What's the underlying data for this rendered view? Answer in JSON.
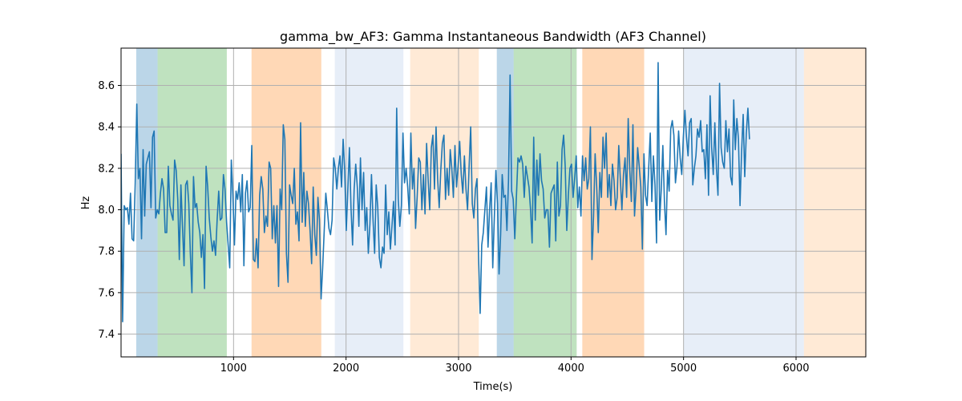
{
  "chart_data": {
    "type": "line",
    "title": "gamma_bw_AF3: Gamma Instantaneous Bandwidth (AF3 Channel)",
    "xlabel": "Time(s)",
    "ylabel": "Hz",
    "xlim": [
      0,
      6620
    ],
    "ylim": [
      7.29,
      8.78
    ],
    "xticks": [
      1000,
      2000,
      3000,
      4000,
      5000,
      6000
    ],
    "yticks": [
      7.4,
      7.6,
      7.8,
      8.0,
      8.2,
      8.4,
      8.6
    ],
    "grid": true,
    "line_color": "#1f77b4",
    "bands": [
      {
        "x0": 135,
        "x1": 325,
        "color": "#1f77b4",
        "opacity": 0.3
      },
      {
        "x0": 325,
        "x1": 940,
        "color": "#2ca02c",
        "opacity": 0.3
      },
      {
        "x0": 1160,
        "x1": 1780,
        "color": "#ff7f0e",
        "opacity": 0.3
      },
      {
        "x0": 1900,
        "x1": 2510,
        "color": "#aec7e8",
        "opacity": 0.3
      },
      {
        "x0": 2570,
        "x1": 3180,
        "color": "#ffbb78",
        "opacity": 0.3
      },
      {
        "x0": 3340,
        "x1": 3490,
        "color": "#1f77b4",
        "opacity": 0.3
      },
      {
        "x0": 3490,
        "x1": 4050,
        "color": "#2ca02c",
        "opacity": 0.3
      },
      {
        "x0": 4100,
        "x1": 4650,
        "color": "#ff7f0e",
        "opacity": 0.3
      },
      {
        "x0": 5000,
        "x1": 6070,
        "color": "#aec7e8",
        "opacity": 0.3
      },
      {
        "x0": 6070,
        "x1": 6620,
        "color": "#ffbb78",
        "opacity": 0.3
      }
    ],
    "series": [
      {
        "x_start": 0,
        "x_step": 14,
        "values": [
          8.27,
          7.46,
          8.02,
          8.0,
          8.01,
          7.93,
          8.08,
          7.86,
          7.85,
          8.13,
          8.51,
          8.15,
          8.2,
          7.86,
          8.29,
          7.97,
          8.22,
          8.25,
          8.28,
          8.01,
          8.35,
          8.38,
          7.96,
          8.0,
          7.98,
          8.08,
          8.15,
          8.1,
          7.89,
          7.89,
          8.21,
          8.02,
          7.98,
          7.95,
          8.24,
          8.19,
          8.05,
          7.76,
          8.12,
          7.92,
          7.73,
          8.12,
          8.14,
          8.03,
          7.79,
          7.6,
          8.16,
          8.01,
          8.03,
          7.94,
          7.89,
          7.77,
          7.88,
          7.62,
          8.21,
          8.11,
          7.96,
          7.87,
          7.8,
          7.85,
          7.78,
          7.95,
          8.09,
          7.95,
          7.96,
          8.17,
          8.1,
          7.94,
          7.83,
          7.72,
          8.24,
          8.07,
          7.83,
          8.09,
          8.05,
          8.13,
          7.99,
          8.17,
          7.73,
          8.08,
          8.14,
          7.99,
          8.01,
          8.31,
          7.76,
          7.75,
          7.86,
          7.72,
          8.07,
          8.16,
          8.1,
          7.89,
          7.97,
          7.92,
          8.23,
          8.2,
          7.86,
          8.02,
          7.84,
          8.02,
          7.63,
          8.1,
          8.0,
          8.41,
          8.34,
          7.79,
          7.65,
          8.12,
          8.07,
          8.03,
          8.2,
          7.93,
          7.99,
          7.85,
          8.42,
          7.94,
          8.18,
          7.92,
          8.09,
          8.03,
          7.9,
          7.74,
          8.11,
          7.88,
          7.78,
          8.06,
          7.95,
          7.57,
          7.72,
          7.9,
          8.08,
          8.0,
          7.91,
          7.88,
          7.95,
          8.25,
          8.2,
          8.1,
          8.2,
          8.26,
          8.11,
          8.34,
          8.19,
          7.9,
          8.1,
          8.3,
          8.01,
          7.83,
          8.1,
          8.22,
          8.11,
          7.92,
          8.25,
          8.0,
          8.18,
          7.9,
          8.01,
          7.79,
          7.93,
          8.17,
          7.95,
          7.79,
          8.12,
          8.01,
          7.77,
          7.72,
          7.82,
          7.79,
          8.12,
          7.88,
          7.99,
          7.81,
          7.92,
          8.04,
          7.83,
          8.49,
          8.05,
          7.92,
          8.02,
          8.37,
          8.13,
          8.2,
          8.11,
          7.98,
          8.37,
          8.1,
          8.2,
          7.91,
          8.06,
          8.25,
          8.23,
          8.0,
          8.17,
          7.98,
          8.32,
          8.14,
          8.0,
          8.3,
          8.36,
          8.1,
          8.4,
          8.15,
          8.01,
          8.19,
          8.32,
          8.36,
          8.05,
          8.2,
          8.07,
          8.29,
          8.2,
          8.06,
          8.31,
          8.11,
          8.21,
          8.33,
          8.17,
          8.08,
          8.26,
          8.1,
          8.0,
          8.21,
          8.4,
          8.03,
          7.96,
          8.1,
          8.15,
          7.77,
          7.5,
          7.83,
          7.89,
          8.0,
          8.11,
          7.82,
          8.0,
          8.13,
          7.72,
          7.96,
          8.19,
          8.03,
          7.69,
          7.88,
          8.17,
          8.06,
          8.07,
          7.9,
          8.14,
          8.65,
          8.09,
          8.05,
          7.86,
          8.06,
          8.25,
          8.23,
          8.26,
          8.22,
          8.06,
          8.21,
          8.16,
          8.11,
          8.0,
          7.84,
          8.35,
          7.95,
          8.24,
          8.07,
          8.27,
          8.14,
          8.1,
          7.96,
          8.0,
          8.0,
          7.82,
          8.08,
          8.1,
          8.12,
          7.85,
          8.23,
          7.97,
          8.02,
          8.29,
          8.36,
          8.21,
          7.9,
          8.07,
          8.2,
          8.22,
          8.06,
          8.15,
          8.26,
          8.01,
          8.11,
          7.97,
          8.26,
          8.14,
          8.25,
          8.1,
          8.15,
          8.4,
          7.76,
          7.97,
          8.27,
          8.11,
          7.89,
          8.18,
          8.06,
          8.35,
          8.2,
          8.37,
          8.06,
          8.17,
          8.02,
          8.22,
          8.14,
          8.0,
          8.06,
          8.31,
          8.15,
          8.0,
          8.17,
          8.25,
          8.06,
          8.44,
          8.19,
          8.04,
          8.41,
          7.97,
          8.1,
          8.3,
          8.21,
          8.11,
          7.81,
          8.27,
          8.07,
          8.02,
          8.2,
          8.37,
          8.04,
          8.26,
          8.12,
          7.84,
          8.71,
          7.95,
          8.1,
          8.31,
          8.04,
          7.88,
          8.19,
          8.09,
          8.39,
          8.43,
          8.36,
          8.13,
          8.21,
          8.38,
          8.25,
          8.17,
          8.35,
          8.48,
          8.35,
          8.26,
          8.42,
          8.44,
          8.12,
          8.2,
          8.26,
          8.39,
          8.35,
          8.43,
          8.28,
          8.29,
          8.15,
          8.41,
          8.07,
          8.55,
          8.3,
          8.17,
          8.42,
          8.2,
          8.07,
          8.61,
          8.3,
          8.23,
          8.2,
          8.43,
          8.28,
          8.39,
          8.16,
          8.12,
          8.53,
          8.29,
          8.44,
          8.34,
          8.02,
          8.28,
          8.46,
          8.16,
          8.37,
          8.49,
          8.34
        ]
      }
    ]
  }
}
